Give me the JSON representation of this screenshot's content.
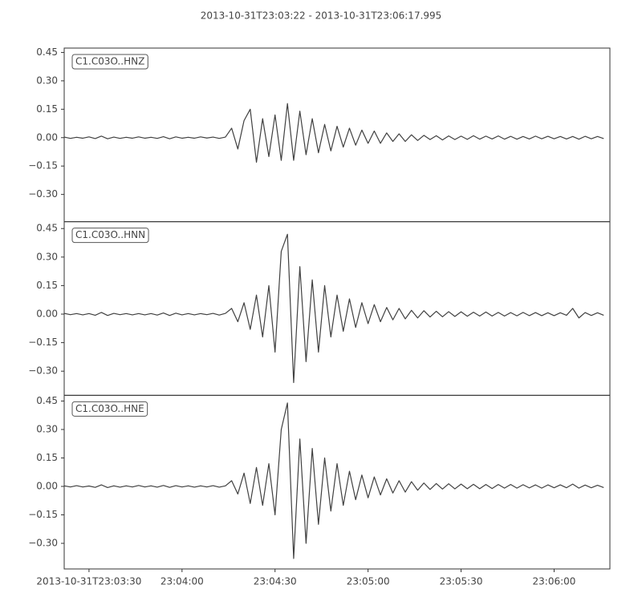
{
  "chart_data": {
    "type": "line",
    "title": "2013-10-31T23:03:22  -  2013-10-31T23:06:17.995",
    "xlim": [
      "2013-10-31T23:03:22",
      "2013-10-31T23:06:17.995"
    ],
    "xticks": [
      "2013-10-31T23:03:30",
      {
        "value": "2013-10-31T23:04:00",
        "label": "23:04:00"
      },
      {
        "value": "2013-10-31T23:04:30",
        "label": "23:04:30"
      },
      {
        "value": "2013-10-31T23:05:00",
        "label": "23:05:00"
      },
      {
        "value": "2013-10-31T23:05:30",
        "label": "23:05:30"
      },
      {
        "value": "2013-10-31T23:06:00",
        "label": "23:06:00"
      }
    ],
    "x": [
      "2013-10-31T23:03:22",
      "2013-10-31T23:03:24",
      "2013-10-31T23:03:26",
      "2013-10-31T23:03:28",
      "2013-10-31T23:03:30",
      "2013-10-31T23:03:32",
      "2013-10-31T23:03:34",
      "2013-10-31T23:03:36",
      "2013-10-31T23:03:38",
      "2013-10-31T23:03:40",
      "2013-10-31T23:03:42",
      "2013-10-31T23:03:44",
      "2013-10-31T23:03:46",
      "2013-10-31T23:03:48",
      "2013-10-31T23:03:50",
      "2013-10-31T23:03:52",
      "2013-10-31T23:03:54",
      "2013-10-31T23:03:56",
      "2013-10-31T23:03:58",
      "2013-10-31T23:04:00",
      "2013-10-31T23:04:02",
      "2013-10-31T23:04:04",
      "2013-10-31T23:04:06",
      "2013-10-31T23:04:08",
      "2013-10-31T23:04:10",
      "2013-10-31T23:04:12",
      "2013-10-31T23:04:14",
      "2013-10-31T23:04:16",
      "2013-10-31T23:04:18",
      "2013-10-31T23:04:20",
      "2013-10-31T23:04:22",
      "2013-10-31T23:04:24",
      "2013-10-31T23:04:26",
      "2013-10-31T23:04:28",
      "2013-10-31T23:04:30",
      "2013-10-31T23:04:32",
      "2013-10-31T23:04:34",
      "2013-10-31T23:04:36",
      "2013-10-31T23:04:38",
      "2013-10-31T23:04:40",
      "2013-10-31T23:04:42",
      "2013-10-31T23:04:44",
      "2013-10-31T23:04:46",
      "2013-10-31T23:04:48",
      "2013-10-31T23:04:50",
      "2013-10-31T23:04:52",
      "2013-10-31T23:04:54",
      "2013-10-31T23:04:56",
      "2013-10-31T23:04:58",
      "2013-10-31T23:05:00",
      "2013-10-31T23:05:02",
      "2013-10-31T23:05:04",
      "2013-10-31T23:05:06",
      "2013-10-31T23:05:08",
      "2013-10-31T23:05:10",
      "2013-10-31T23:05:12",
      "2013-10-31T23:05:14",
      "2013-10-31T23:05:16",
      "2013-10-31T23:05:18",
      "2013-10-31T23:05:20",
      "2013-10-31T23:05:22",
      "2013-10-31T23:05:24",
      "2013-10-31T23:05:26",
      "2013-10-31T23:05:28",
      "2013-10-31T23:05:30",
      "2013-10-31T23:05:32",
      "2013-10-31T23:05:34",
      "2013-10-31T23:05:36",
      "2013-10-31T23:05:38",
      "2013-10-31T23:05:40",
      "2013-10-31T23:05:42",
      "2013-10-31T23:05:44",
      "2013-10-31T23:05:46",
      "2013-10-31T23:05:48",
      "2013-10-31T23:05:50",
      "2013-10-31T23:05:52",
      "2013-10-31T23:05:54",
      "2013-10-31T23:05:56",
      "2013-10-31T23:05:58",
      "2013-10-31T23:06:00",
      "2013-10-31T23:06:02",
      "2013-10-31T23:06:04",
      "2013-10-31T23:06:06",
      "2013-10-31T23:06:08",
      "2013-10-31T23:06:10",
      "2013-10-31T23:06:12",
      "2013-10-31T23:06:14",
      "2013-10-31T23:06:16"
    ],
    "series": [
      {
        "name": "C1.C03O..HNZ",
        "color": "#404040",
        "ylim": [
          -0.444,
          0.473
        ],
        "yticks": [
          {
            "value": -0.3,
            "label": "−0.30"
          },
          {
            "value": -0.15,
            "label": "−0.15"
          },
          {
            "value": 0,
            "label": "0.00"
          },
          {
            "value": 0.15,
            "label": "0.15"
          },
          {
            "value": 0.3,
            "label": "0.30"
          },
          {
            "value": 0.45,
            "label": "0.45"
          }
        ],
        "values": [
          0.003,
          -0.004,
          0.002,
          -0.003,
          0.004,
          -0.005,
          0.008,
          -0.006,
          0.003,
          -0.004,
          0.002,
          -0.003,
          0.004,
          -0.003,
          0.002,
          -0.004,
          0.005,
          -0.006,
          0.004,
          -0.003,
          0.002,
          -0.003,
          0.004,
          -0.002,
          0.003,
          -0.004,
          0.003,
          0.05,
          -0.06,
          0.09,
          0.15,
          -0.13,
          0.1,
          -0.1,
          0.12,
          -0.12,
          0.18,
          -0.12,
          0.14,
          -0.09,
          0.1,
          -0.08,
          0.07,
          -0.07,
          0.06,
          -0.05,
          0.05,
          -0.04,
          0.04,
          -0.03,
          0.035,
          -0.03,
          0.025,
          -0.02,
          0.02,
          -0.02,
          0.015,
          -0.015,
          0.012,
          -0.01,
          0.01,
          -0.012,
          0.009,
          -0.01,
          0.008,
          -0.009,
          0.01,
          -0.008,
          0.008,
          -0.007,
          0.009,
          -0.008,
          0.007,
          -0.008,
          0.006,
          -0.007,
          0.008,
          -0.006,
          0.007,
          -0.006,
          0.006,
          -0.007,
          0.006,
          -0.008,
          0.007,
          -0.006,
          0.006,
          -0.005
        ]
      },
      {
        "name": "C1.C03O..HNN",
        "color": "#404040",
        "ylim": [
          -0.427,
          0.486
        ],
        "yticks": [
          {
            "value": -0.3,
            "label": "−0.30"
          },
          {
            "value": -0.15,
            "label": "−0.15"
          },
          {
            "value": 0,
            "label": "0.00"
          },
          {
            "value": 0.15,
            "label": "0.15"
          },
          {
            "value": 0.3,
            "label": "0.30"
          },
          {
            "value": 0.45,
            "label": "0.45"
          }
        ],
        "values": [
          0.004,
          -0.003,
          0.003,
          -0.004,
          0.003,
          -0.006,
          0.009,
          -0.007,
          0.004,
          -0.003,
          0.003,
          -0.004,
          0.003,
          -0.004,
          0.003,
          -0.005,
          0.006,
          -0.007,
          0.005,
          -0.004,
          0.003,
          -0.004,
          0.003,
          -0.003,
          0.004,
          -0.005,
          0.004,
          0.03,
          -0.04,
          0.06,
          -0.08,
          0.1,
          -0.12,
          0.15,
          -0.2,
          0.33,
          0.42,
          -0.36,
          0.25,
          -0.25,
          0.18,
          -0.2,
          0.15,
          -0.12,
          0.1,
          -0.09,
          0.08,
          -0.07,
          0.06,
          -0.05,
          0.05,
          -0.04,
          0.035,
          -0.03,
          0.03,
          -0.025,
          0.02,
          -0.02,
          0.018,
          -0.015,
          0.015,
          -0.014,
          0.013,
          -0.012,
          0.012,
          -0.011,
          0.01,
          -0.01,
          0.011,
          -0.01,
          0.009,
          -0.01,
          0.008,
          -0.009,
          0.009,
          -0.008,
          0.008,
          -0.008,
          0.007,
          -0.008,
          0.007,
          -0.006,
          0.03,
          -0.02,
          0.008,
          -0.007,
          0.007,
          -0.006
        ]
      },
      {
        "name": "C1.C03O..HNE",
        "color": "#404040",
        "ylim": [
          -0.435,
          0.48
        ],
        "yticks": [
          {
            "value": -0.3,
            "label": "−0.30"
          },
          {
            "value": -0.15,
            "label": "−0.15"
          },
          {
            "value": 0,
            "label": "0.00"
          },
          {
            "value": 0.15,
            "label": "0.15"
          },
          {
            "value": 0.3,
            "label": "0.30"
          },
          {
            "value": 0.45,
            "label": "0.45"
          }
        ],
        "values": [
          0.003,
          -0.003,
          0.004,
          -0.003,
          0.002,
          -0.005,
          0.008,
          -0.006,
          0.003,
          -0.004,
          0.003,
          -0.003,
          0.005,
          -0.003,
          0.003,
          -0.004,
          0.005,
          -0.005,
          0.004,
          -0.003,
          0.003,
          -0.004,
          0.003,
          -0.003,
          0.004,
          -0.004,
          0.003,
          0.03,
          -0.04,
          0.07,
          -0.09,
          0.1,
          -0.1,
          0.12,
          -0.15,
          0.3,
          0.44,
          -0.38,
          0.25,
          -0.3,
          0.2,
          -0.2,
          0.15,
          -0.13,
          0.12,
          -0.1,
          0.08,
          -0.07,
          0.06,
          -0.06,
          0.05,
          -0.045,
          0.04,
          -0.035,
          0.03,
          -0.03,
          0.025,
          -0.02,
          0.018,
          -0.016,
          0.015,
          -0.014,
          0.014,
          -0.013,
          0.012,
          -0.012,
          0.011,
          -0.012,
          0.01,
          -0.011,
          0.01,
          -0.009,
          0.01,
          -0.009,
          0.009,
          -0.008,
          0.008,
          -0.009,
          0.008,
          -0.007,
          0.008,
          -0.007,
          0.012,
          -0.009,
          0.007,
          -0.007,
          0.006,
          -0.006
        ]
      }
    ]
  }
}
